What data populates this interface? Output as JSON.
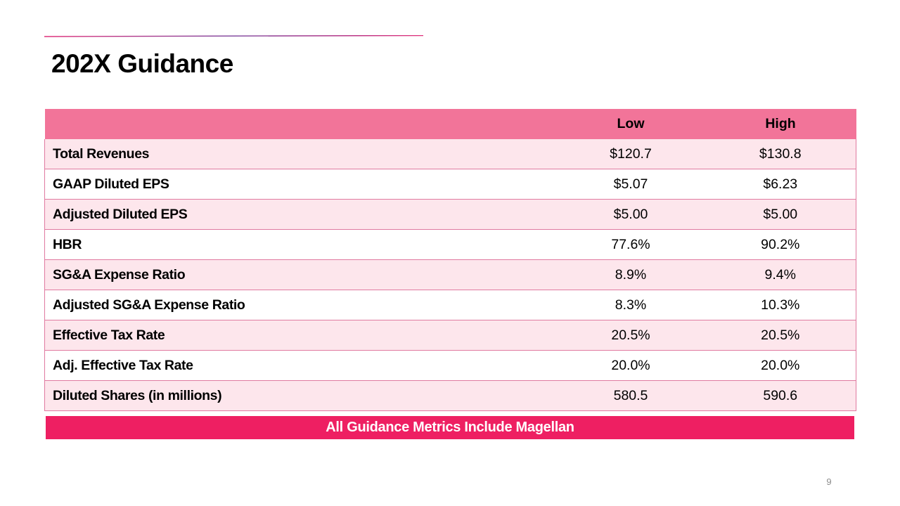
{
  "slide": {
    "title": "202X Guidance",
    "page_number": "9",
    "accent_color": "#ee1f62",
    "header_color": "#f27499",
    "row_tint_color": "#fde6ec"
  },
  "table": {
    "headers": [
      "",
      "Low",
      "High"
    ],
    "rows": [
      {
        "metric": "Total Revenues",
        "low": "$120.7",
        "high": "$130.8"
      },
      {
        "metric": "GAAP Diluted EPS",
        "low": "$5.07",
        "high": "$6.23"
      },
      {
        "metric": "Adjusted Diluted EPS",
        "low": "$5.00",
        "high": "$5.00"
      },
      {
        "metric": "HBR",
        "low": "77.6%",
        "high": "90.2%"
      },
      {
        "metric": "SG&A Expense Ratio",
        "low": "8.9%",
        "high": "9.4%"
      },
      {
        "metric": "Adjusted SG&A Expense Ratio",
        "low": "8.3%",
        "high": "10.3%"
      },
      {
        "metric": "Effective Tax Rate",
        "low": "20.5%",
        "high": "20.5%"
      },
      {
        "metric": "Adj. Effective Tax Rate",
        "low": "20.0%",
        "high": "20.0%"
      },
      {
        "metric": "Diluted Shares (in millions)",
        "low": "580.5",
        "high": "590.6"
      }
    ]
  },
  "banner": {
    "text": "All Guidance Metrics Include Magellan"
  }
}
